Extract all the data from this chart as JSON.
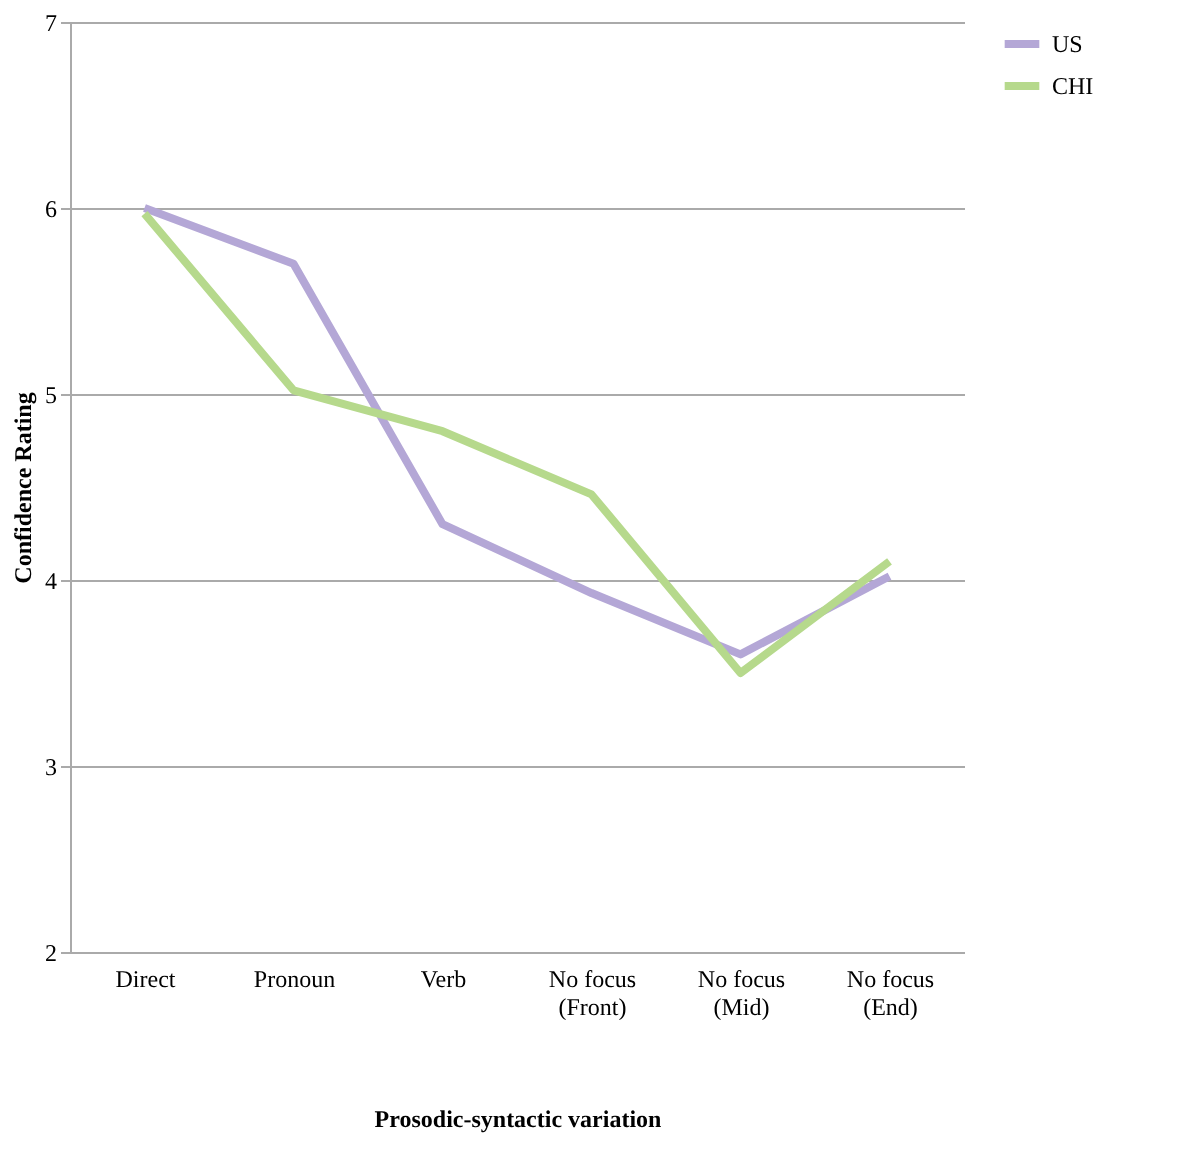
{
  "chart_data": {
    "type": "line",
    "xlabel": "Prosodic-syntactic variation",
    "ylabel": "Confidence Rating",
    "categories": [
      "Direct",
      "Pronoun",
      "Verb",
      "No focus (Front)",
      "No focus (Mid)",
      "No focus (End)"
    ],
    "series": [
      {
        "name": "US",
        "color": "#b4a7d6",
        "values": [
          6.0,
          5.7,
          4.3,
          3.93,
          3.6,
          4.02
        ]
      },
      {
        "name": "CHI",
        "color": "#b6d98c",
        "values": [
          5.97,
          5.02,
          4.8,
          4.46,
          3.5,
          4.1
        ]
      }
    ],
    "ylim": [
      2,
      7
    ],
    "yticks": [
      2,
      3,
      4,
      5,
      6,
      7
    ],
    "grid": "y",
    "legend": "right",
    "marker": "none",
    "line_style": "solid"
  }
}
